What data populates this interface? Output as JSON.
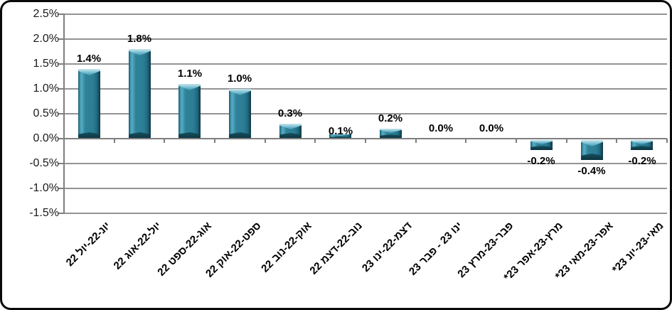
{
  "window": {
    "description": "Hebrew RTL bar chart of monthly percentage changes, framed in a rounded black border"
  },
  "chart_data": {
    "type": "bar",
    "title": "",
    "xlabel": "",
    "ylabel": "",
    "direction": "rtl",
    "legend": "none",
    "grid": true,
    "ylim": [
      -1.5,
      2.5
    ],
    "y_ticks": [
      "2.5%",
      "2.0%",
      "1.5%",
      "1.0%",
      "0.5%",
      "0.0%",
      "-0.5%",
      "-1.0%",
      "-1.5%"
    ],
    "y_tick_values": [
      2.5,
      2.0,
      1.5,
      1.0,
      0.5,
      0.0,
      -0.5,
      -1.0,
      -1.5
    ],
    "categories": [
      "יונ-22-יול 22",
      "יול-22-אוג 22",
      "אוג-22-ספט 22",
      "ספט-22-אוק 22",
      "אוק-22-נוב 22",
      "נוב-22-דצמ 22",
      "דצמ-22-ינו 23",
      "ינו 23 - פבר 23",
      "פבר-23-מרץ 23",
      "מרץ-23-אפר 23*",
      "אפר-23-מאי 23*",
      "מאי-23-יונ 23*"
    ],
    "values": [
      1.4,
      1.8,
      1.1,
      1.0,
      0.3,
      0.1,
      0.2,
      0.0,
      0.0,
      -0.2,
      -0.4,
      -0.2
    ],
    "data_labels": [
      "1.4%",
      "1.8%",
      "1.1%",
      "1.0%",
      "0.3%",
      "0.1%",
      "0.2%",
      "0.0%",
      "0.0%",
      "-0.2%",
      "-0.4%",
      "-0.2%"
    ],
    "colors": {
      "bar_fill": "#2C7D95",
      "bar_highlight": "#8FCADB",
      "bar_edge_dark": "#0D3540",
      "gridline": "#949494",
      "axis": "#7F7F7F",
      "data_label_text": "#000000",
      "tick_label_text": "#1A1A1A",
      "frame_border": "#0A0A0A",
      "background": "#FFFFFF"
    }
  }
}
